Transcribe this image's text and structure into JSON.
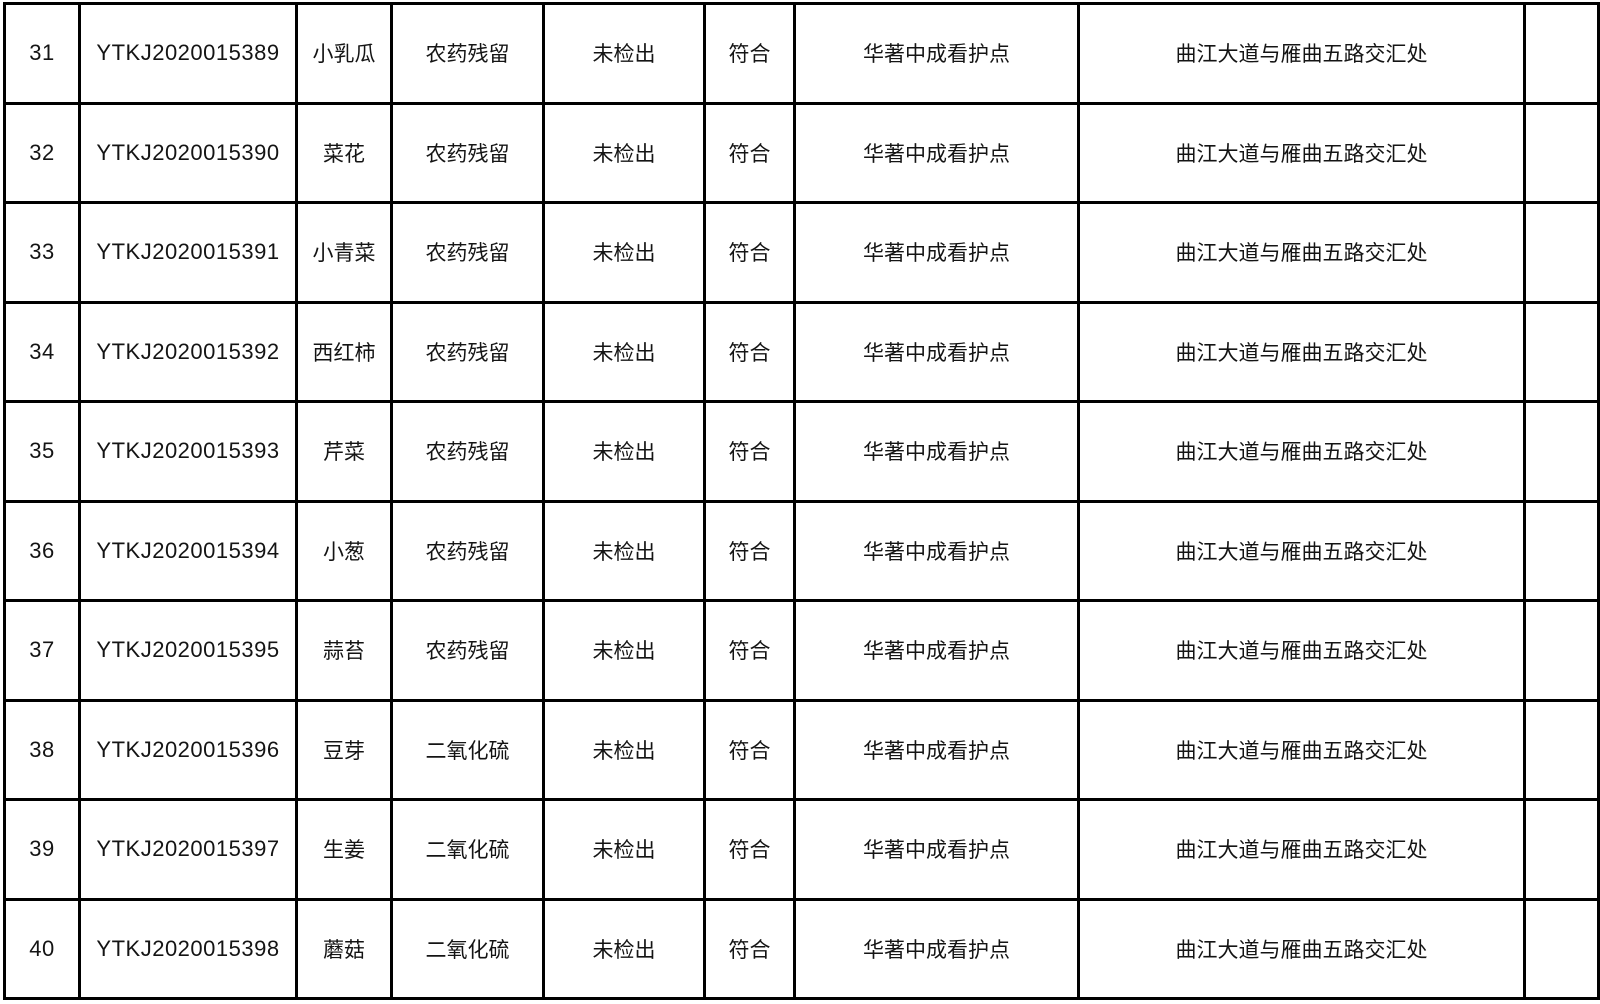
{
  "table": {
    "column_keys": [
      "no",
      "sample_id",
      "sample_name",
      "test_item",
      "result",
      "conclusion",
      "sampling_site",
      "address",
      "remark"
    ],
    "rows": [
      {
        "no": "31",
        "sample_id": "YTKJ2020015389",
        "sample_name": "小乳瓜",
        "test_item": "农药残留",
        "result": "未检出",
        "conclusion": "符合",
        "sampling_site": "华著中成看护点",
        "address": "曲江大道与雁曲五路交汇处",
        "remark": ""
      },
      {
        "no": "32",
        "sample_id": "YTKJ2020015390",
        "sample_name": "菜花",
        "test_item": "农药残留",
        "result": "未检出",
        "conclusion": "符合",
        "sampling_site": "华著中成看护点",
        "address": "曲江大道与雁曲五路交汇处",
        "remark": ""
      },
      {
        "no": "33",
        "sample_id": "YTKJ2020015391",
        "sample_name": "小青菜",
        "test_item": "农药残留",
        "result": "未检出",
        "conclusion": "符合",
        "sampling_site": "华著中成看护点",
        "address": "曲江大道与雁曲五路交汇处",
        "remark": ""
      },
      {
        "no": "34",
        "sample_id": "YTKJ2020015392",
        "sample_name": "西红柿",
        "test_item": "农药残留",
        "result": "未检出",
        "conclusion": "符合",
        "sampling_site": "华著中成看护点",
        "address": "曲江大道与雁曲五路交汇处",
        "remark": ""
      },
      {
        "no": "35",
        "sample_id": "YTKJ2020015393",
        "sample_name": "芹菜",
        "test_item": "农药残留",
        "result": "未检出",
        "conclusion": "符合",
        "sampling_site": "华著中成看护点",
        "address": "曲江大道与雁曲五路交汇处",
        "remark": ""
      },
      {
        "no": "36",
        "sample_id": "YTKJ2020015394",
        "sample_name": "小葱",
        "test_item": "农药残留",
        "result": "未检出",
        "conclusion": "符合",
        "sampling_site": "华著中成看护点",
        "address": "曲江大道与雁曲五路交汇处",
        "remark": ""
      },
      {
        "no": "37",
        "sample_id": "YTKJ2020015395",
        "sample_name": "蒜苔",
        "test_item": "农药残留",
        "result": "未检出",
        "conclusion": "符合",
        "sampling_site": "华著中成看护点",
        "address": "曲江大道与雁曲五路交汇处",
        "remark": ""
      },
      {
        "no": "38",
        "sample_id": "YTKJ2020015396",
        "sample_name": "豆芽",
        "test_item": "二氧化硫",
        "result": "未检出",
        "conclusion": "符合",
        "sampling_site": "华著中成看护点",
        "address": "曲江大道与雁曲五路交汇处",
        "remark": ""
      },
      {
        "no": "39",
        "sample_id": "YTKJ2020015397",
        "sample_name": "生姜",
        "test_item": "二氧化硫",
        "result": "未检出",
        "conclusion": "符合",
        "sampling_site": "华著中成看护点",
        "address": "曲江大道与雁曲五路交汇处",
        "remark": ""
      },
      {
        "no": "40",
        "sample_id": "YTKJ2020015398",
        "sample_name": "蘑菇",
        "test_item": "二氧化硫",
        "result": "未检出",
        "conclusion": "符合",
        "sampling_site": "华著中成看护点",
        "address": "曲江大道与雁曲五路交汇处",
        "remark": ""
      }
    ]
  }
}
